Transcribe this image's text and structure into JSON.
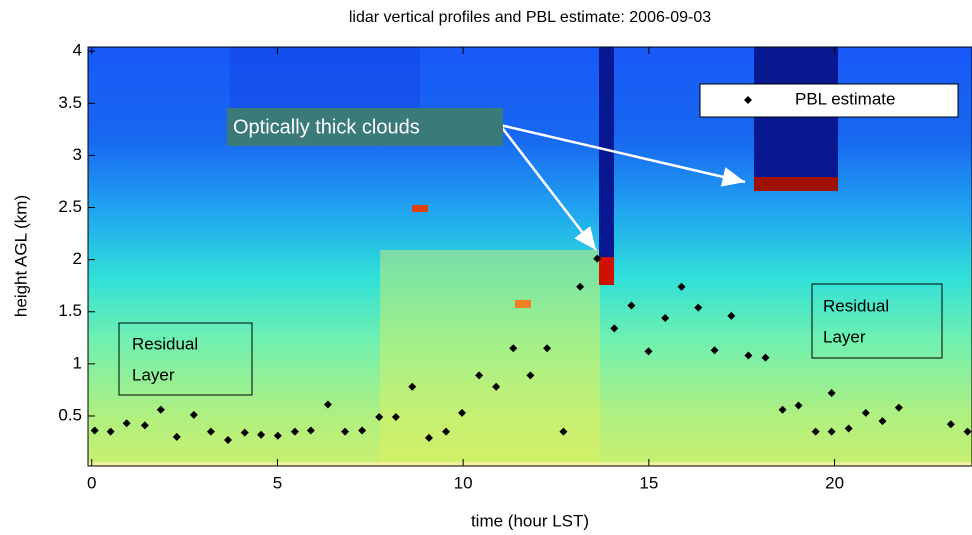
{
  "chart_data": {
    "type": "scatter",
    "title": "lidar vertical profiles and PBL estimate: 2006-09-03",
    "x_label": "time (hour LST)",
    "y_label": "height AGL (km)",
    "xlim": [
      -0.1,
      23.7
    ],
    "ylim": [
      0.02,
      4.04
    ],
    "xticks": [
      0,
      5,
      10,
      15,
      20
    ],
    "yticks": [
      0.5,
      1,
      1.5,
      2,
      2.5,
      3,
      3.5,
      4
    ],
    "legend_position": "upper right",
    "series": [
      {
        "name": "PBL estimate",
        "color": "#000000",
        "x": [
          0.08,
          0.51,
          0.94,
          1.43,
          1.86,
          2.29,
          2.75,
          3.21,
          3.67,
          4.12,
          4.56,
          5.01,
          5.47,
          5.9,
          6.36,
          6.82,
          7.28,
          7.74,
          8.19,
          8.63,
          9.08,
          9.54,
          9.97,
          10.43,
          10.89,
          11.35,
          11.81,
          12.26,
          12.7,
          13.15,
          13.61,
          14.07,
          14.53,
          14.99,
          15.44,
          15.88,
          16.33,
          16.77,
          17.22,
          17.68,
          18.14,
          18.6,
          19.03,
          19.49,
          19.92,
          19.92,
          20.38,
          20.84,
          21.29,
          21.73,
          23.13,
          23.58
        ],
        "values": [
          0.36,
          0.35,
          0.43,
          0.41,
          0.56,
          0.3,
          0.51,
          0.35,
          0.27,
          0.34,
          0.32,
          0.31,
          0.35,
          0.36,
          0.61,
          0.35,
          0.36,
          0.49,
          0.49,
          0.78,
          0.29,
          0.35,
          0.53,
          0.89,
          0.78,
          1.15,
          0.89,
          1.15,
          0.35,
          1.74,
          2.01,
          1.34,
          1.56,
          1.12,
          1.44,
          1.74,
          1.54,
          1.13,
          1.46,
          1.08,
          1.06,
          0.56,
          0.6,
          0.35,
          0.35,
          0.72,
          0.38,
          0.53,
          0.45,
          0.58,
          0.42,
          0.35
        ]
      }
    ],
    "annotations": [
      {
        "text": "Optically thick clouds"
      },
      {
        "lines": [
          "Residual",
          "Layer"
        ]
      },
      {
        "lines": [
          "Residual",
          "Layer"
        ]
      }
    ]
  }
}
